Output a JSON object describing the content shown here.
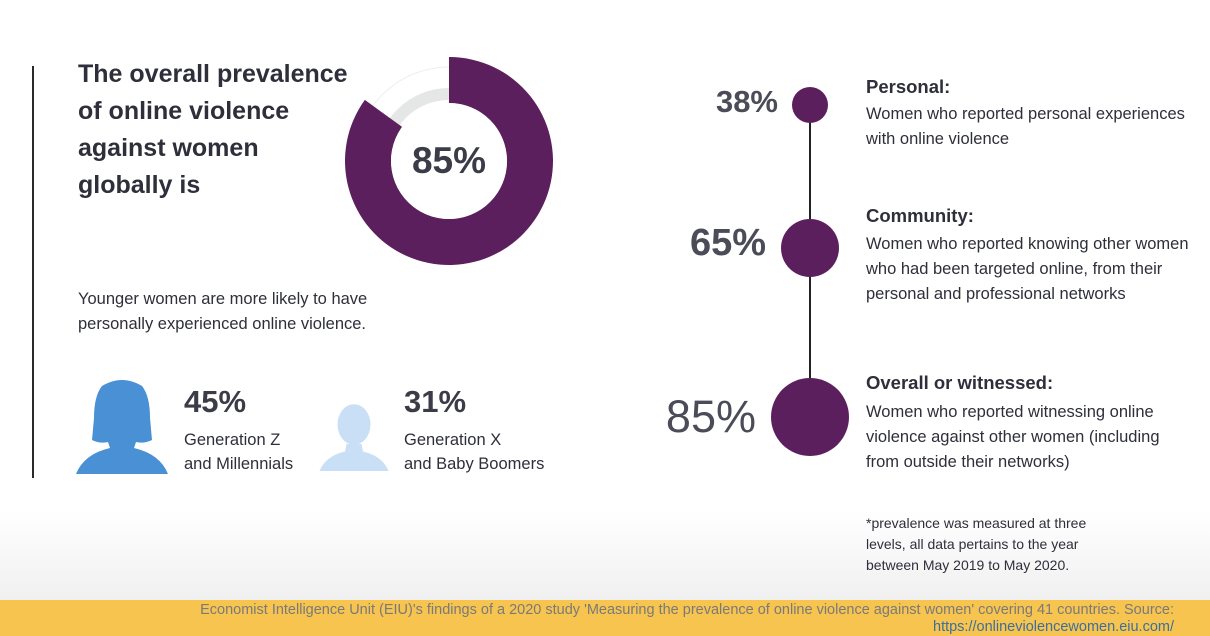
{
  "headline": "The overall prevalence of online violence against women globally is",
  "overall": {
    "value": 0.85,
    "label": "85%"
  },
  "intro": "Younger women are more likely to have personally experienced online violence.",
  "generations": [
    {
      "pct": "45%",
      "line1": "Generation Z",
      "line2": "and Millennials",
      "icon": "woman-silhouette-icon",
      "color": "#4a90d4"
    },
    {
      "pct": "31%",
      "line1": "Generation X",
      "line2": "and Baby Boomers",
      "icon": "woman-silhouette-icon",
      "color": "#c8dff5"
    }
  ],
  "levels": [
    {
      "pct": "38%",
      "title": "Personal:",
      "desc": "Women who reported personal experiences with online violence"
    },
    {
      "pct": "65%",
      "title": "Community:",
      "desc": "Women who reported knowing other women who had been targeted online, from their personal and professional networks"
    },
    {
      "pct": "85%",
      "title": "Overall or witnessed:",
      "desc": "Women who reported witnessing online violence against other women (including from outside their networks)"
    }
  ],
  "note": "*prevalence was measured at three levels, all data pertains to the year between May 2019 to May 2020.",
  "footer": {
    "text": "Economist Intelligence Unit (EIU)'s findings of a 2020 study 'Measuring the prevalence of online violence against women' covering 41 countries. Source: ",
    "link": "https://onlineviolencewomen.eiu.com/"
  },
  "colors": {
    "accent": "#5c1f5e",
    "track": "#e5e6e6",
    "footer_bg": "#f6c44f",
    "gen_z": "#4a90d4",
    "gen_x": "#c8dff5"
  }
}
